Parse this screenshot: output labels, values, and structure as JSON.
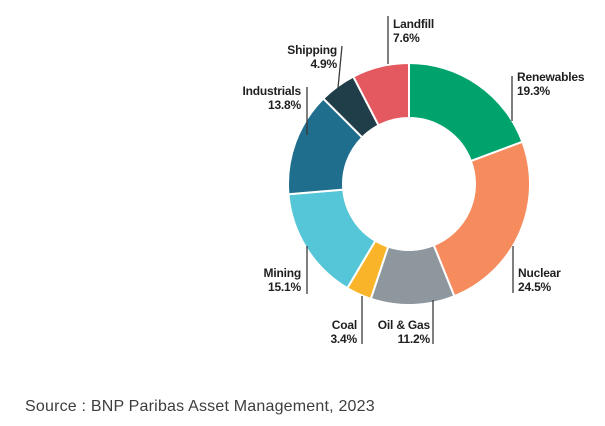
{
  "chart_data": {
    "type": "pie",
    "subtype": "donut",
    "title": "",
    "direction": "clockwise",
    "start_angle_deg": 0,
    "value_suffix": "%",
    "legend_position": "callout-labels",
    "segments": [
      {
        "label": "Renewables",
        "value": 19.3,
        "color": "#00a36b"
      },
      {
        "label": "Nuclear",
        "value": 24.5,
        "color": "#f68b5e"
      },
      {
        "label": "Oil & Gas",
        "value": 11.2,
        "color": "#8e979e"
      },
      {
        "label": "Coal",
        "value": 3.4,
        "color": "#f9b42a"
      },
      {
        "label": "Mining",
        "value": 15.1,
        "color": "#55c6d7"
      },
      {
        "label": "Industrials",
        "value": 13.8,
        "color": "#206e8e"
      },
      {
        "label": "Shipping",
        "value": 4.9,
        "color": "#203d4a"
      },
      {
        "label": "Landfill",
        "value": 7.6,
        "color": "#e3595f"
      }
    ]
  },
  "caption": {
    "source": "Source : BNP Paribas Asset Management, 2023"
  },
  "colors": {
    "background": "#ffffff",
    "label_text": "#1f1f1f",
    "leader_line": "#3a3a3a",
    "slice_separator": "#ffffff",
    "source_text": "#3e3e3d"
  }
}
